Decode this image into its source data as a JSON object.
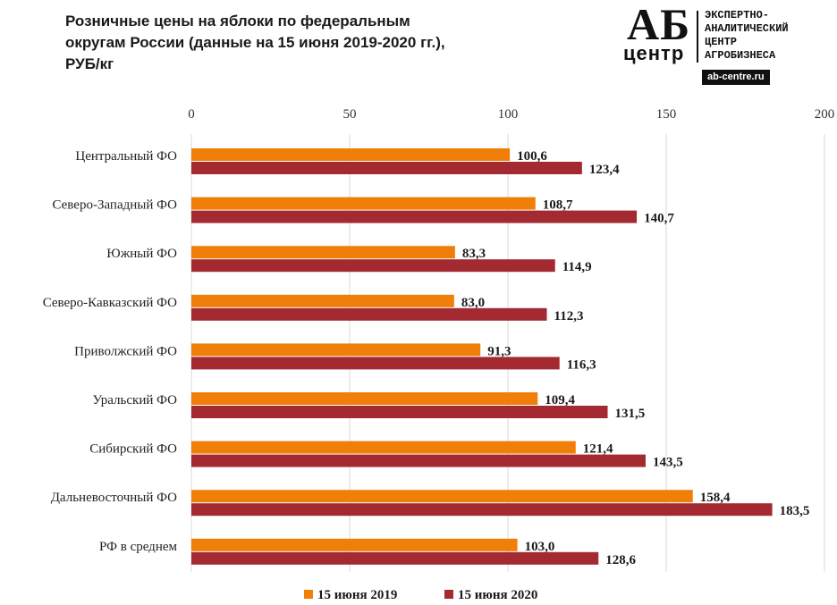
{
  "title_lines": [
    "Розничные цены на яблоки по федеральным",
    "округам России (данные на 15 июня 2019-2020 гг.),",
    "РУБ/кг"
  ],
  "logo": {
    "mark_top": "АБ",
    "mark_bottom": "центр",
    "text_lines": [
      "ЭКСПЕРТНО-",
      "АНАЛИТИЧЕСКИЙ",
      "ЦЕНТР",
      "АГРОБИЗНЕСА"
    ],
    "site": "ab-centre.ru"
  },
  "chart_data": {
    "type": "bar",
    "orientation": "horizontal",
    "title": "Розничные цены на яблоки по федеральным округам России (данные на 15 июня 2019-2020 гг.), РУБ/кг",
    "categories": [
      "Центральный ФО",
      "Северо-Западный ФО",
      "Южный ФО",
      "Северо-Кавказский ФО",
      "Приволжский ФО",
      "Уральский ФО",
      "Сибирский ФО",
      "Дальневосточный ФО",
      "РФ в среднем"
    ],
    "series": [
      {
        "name": "15 июня 2019",
        "color": "#F07F09",
        "values": [
          100.6,
          108.7,
          83.3,
          83.0,
          91.3,
          109.4,
          121.4,
          158.4,
          103.0
        ],
        "labels": [
          "100,6",
          "108,7",
          "83,3",
          "83,0",
          "91,3",
          "109,4",
          "121,4",
          "158,4",
          "103,0"
        ]
      },
      {
        "name": "15 июня 2020",
        "color": "#A32A30",
        "values": [
          123.4,
          140.7,
          114.9,
          112.3,
          116.3,
          131.5,
          143.5,
          183.5,
          128.6
        ],
        "labels": [
          "123,4",
          "140,7",
          "114,9",
          "112,3",
          "116,3",
          "131,5",
          "143,5",
          "183,5",
          "128,6"
        ]
      }
    ],
    "xlim": [
      0,
      200
    ],
    "ticks": [
      "0",
      "50",
      "100",
      "150",
      "200"
    ],
    "tick_values": [
      0,
      50,
      100,
      150,
      200
    ],
    "gridlines": true,
    "axis_position": "top",
    "legend_position": "bottom"
  }
}
